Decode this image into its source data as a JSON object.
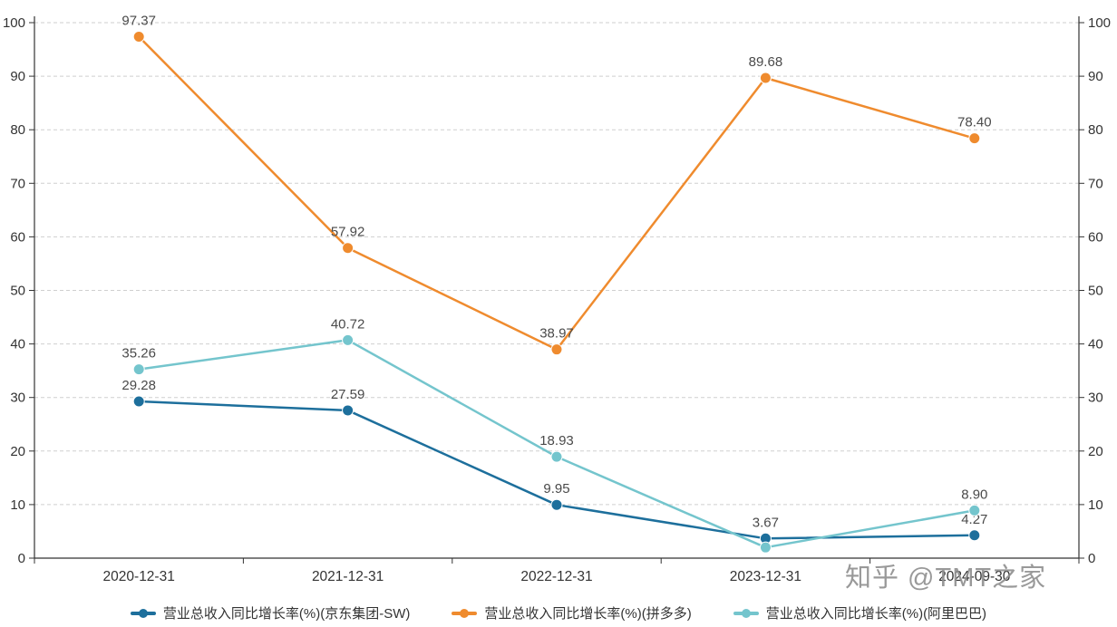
{
  "chart_data": {
    "type": "line",
    "title": "",
    "x": [
      "2020-12-31",
      "2021-12-31",
      "2022-12-31",
      "2023-12-31",
      "2024-09-30"
    ],
    "series": [
      {
        "name": "营业总收入同比增长率(%)(京东集团-SW)",
        "color": "#1d6f9c",
        "values": [
          29.28,
          27.59,
          9.95,
          3.67,
          4.27
        ],
        "labels": [
          "29.28",
          "27.59",
          "9.95",
          "3.67",
          "4.27"
        ]
      },
      {
        "name": "营业总收入同比增长率(%)(拼多多)",
        "color": "#ef8b2e",
        "values": [
          97.37,
          57.92,
          38.97,
          89.68,
          78.4
        ],
        "labels": [
          "97.37",
          "57.92",
          "38.97",
          "89.68",
          "78.40"
        ]
      },
      {
        "name": "营业总收入同比增长率(%)(阿里巴巴)",
        "color": "#74c5cd",
        "values": [
          35.26,
          40.72,
          18.93,
          2.0,
          8.9
        ],
        "labels": [
          "35.26",
          "40.72",
          "18.93",
          null,
          "8.90"
        ]
      }
    ],
    "ylim": [
      0,
      100
    ],
    "yticks": [
      0,
      10,
      20,
      30,
      40,
      50,
      60,
      70,
      80,
      90,
      100
    ],
    "grid": "dashed-horizontal",
    "legend_position": "bottom",
    "axis_sides": "left-and-right"
  },
  "watermark": {
    "text": "知乎 @TMT之家"
  }
}
